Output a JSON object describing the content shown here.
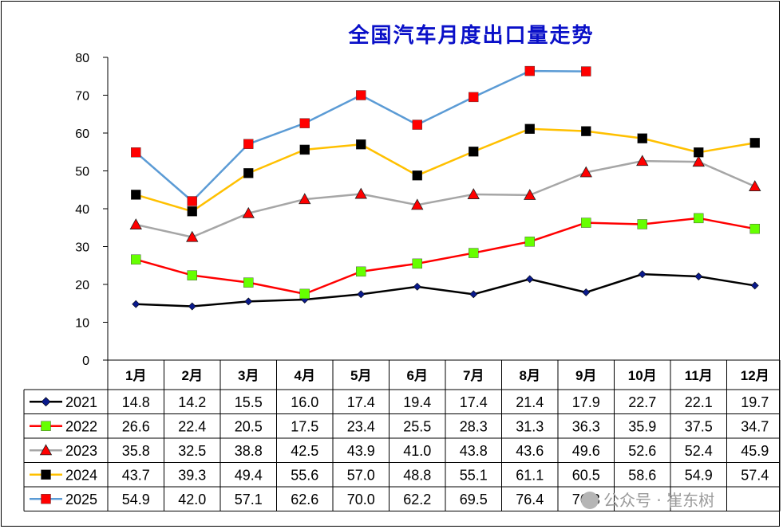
{
  "chart_data": {
    "type": "line",
    "title": "全国汽车月度出口量走势",
    "categories": [
      "1月",
      "2月",
      "3月",
      "4月",
      "5月",
      "6月",
      "7月",
      "8月",
      "9月",
      "10月",
      "11月",
      "12月"
    ],
    "ylim": [
      0,
      80
    ],
    "yticks": [
      "0",
      "10",
      "20",
      "30",
      "40",
      "50",
      "60",
      "70",
      "80"
    ],
    "grid": false,
    "legend": "data-table-left",
    "series": [
      {
        "name": "2021",
        "color": "#000000",
        "marker": "diamond",
        "marker_color": "#0a1a8c",
        "values": [
          14.8,
          14.2,
          15.5,
          16.0,
          17.4,
          19.4,
          17.4,
          21.4,
          17.9,
          22.7,
          22.1,
          19.7
        ],
        "labels": [
          "14.8",
          "14.2",
          "15.5",
          "16.0",
          "17.4",
          "19.4",
          "17.4",
          "21.4",
          "17.9",
          "22.7",
          "22.1",
          "19.7"
        ]
      },
      {
        "name": "2022",
        "color": "#ff0000",
        "marker": "square",
        "marker_color": "#66ff00",
        "values": [
          26.6,
          22.4,
          20.5,
          17.5,
          23.4,
          25.5,
          28.3,
          31.3,
          36.3,
          35.9,
          37.5,
          34.7
        ],
        "labels": [
          "26.6",
          "22.4",
          "20.5",
          "17.5",
          "23.4",
          "25.5",
          "28.3",
          "31.3",
          "36.3",
          "35.9",
          "37.5",
          "34.7"
        ]
      },
      {
        "name": "2023",
        "color": "#a6a6a6",
        "marker": "triangle",
        "marker_color": "#ff0000",
        "values": [
          35.8,
          32.5,
          38.8,
          42.5,
          43.9,
          41.0,
          43.8,
          43.6,
          49.6,
          52.6,
          52.4,
          45.9
        ],
        "labels": [
          "35.8",
          "32.5",
          "38.8",
          "42.5",
          "43.9",
          "41.0",
          "43.8",
          "43.6",
          "49.6",
          "52.6",
          "52.4",
          "45.9"
        ]
      },
      {
        "name": "2024",
        "color": "#ffc000",
        "marker": "square",
        "marker_color": "#000000",
        "values": [
          43.7,
          39.3,
          49.4,
          55.6,
          57.0,
          48.8,
          55.1,
          61.1,
          60.5,
          58.6,
          54.9,
          57.4
        ],
        "labels": [
          "43.7",
          "39.3",
          "49.4",
          "55.6",
          "57.0",
          "48.8",
          "55.1",
          "61.1",
          "60.5",
          "58.6",
          "54.9",
          "57.4"
        ]
      },
      {
        "name": "2025",
        "color": "#5b9bd5",
        "marker": "square",
        "marker_color": "#ff0000",
        "values": [
          54.9,
          42.0,
          57.1,
          62.6,
          70.0,
          62.2,
          69.5,
          76.4,
          76.3,
          null,
          null,
          null
        ],
        "labels": [
          "54.9",
          "42.0",
          "57.1",
          "62.6",
          "70.0",
          "62.2",
          "69.5",
          "76.4",
          "76.3",
          "",
          "",
          ""
        ]
      }
    ]
  },
  "watermark": "公众号 · 崔东树"
}
